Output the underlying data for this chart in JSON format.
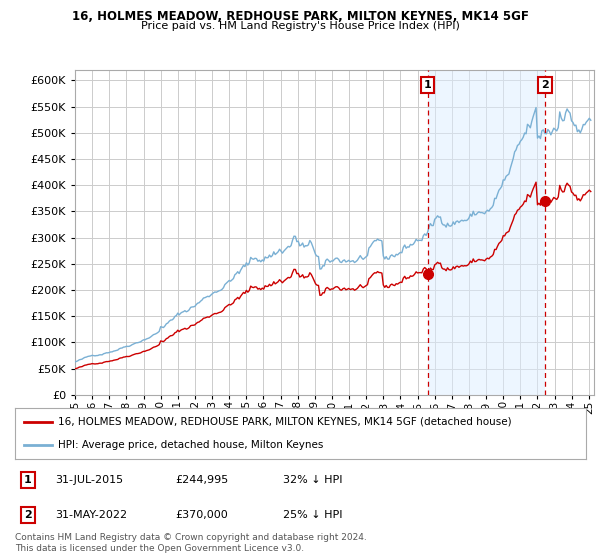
{
  "title1": "16, HOLMES MEADOW, REDHOUSE PARK, MILTON KEYNES, MK14 5GF",
  "title2": "Price paid vs. HM Land Registry's House Price Index (HPI)",
  "bg_color": "#ffffff",
  "plot_bg_color": "#ffffff",
  "grid_color": "#cccccc",
  "hpi_color": "#7ab0d4",
  "hpi_fill_color": "#ddeeff",
  "price_color": "#cc0000",
  "sale1_price": 244995,
  "sale1_date": "31-JUL-2015",
  "sale1_hpi_pct": "32% ↓ HPI",
  "sale2_price": 370000,
  "sale2_date": "31-MAY-2022",
  "sale2_hpi_pct": "25% ↓ HPI",
  "legend_line1": "16, HOLMES MEADOW, REDHOUSE PARK, MILTON KEYNES, MK14 5GF (detached house)",
  "legend_line2": "HPI: Average price, detached house, Milton Keynes",
  "footer": "Contains HM Land Registry data © Crown copyright and database right 2024.\nThis data is licensed under the Open Government Licence v3.0.",
  "ylim_max": 620000,
  "yticks": [
    0,
    50000,
    100000,
    150000,
    200000,
    250000,
    300000,
    350000,
    400000,
    450000,
    500000,
    550000,
    600000
  ],
  "sale1_x": 2015.58,
  "sale2_x": 2022.42,
  "vline_color": "#cc0000",
  "annotation_box_color": "#cc0000",
  "xstart": 1995.5,
  "xend": 2025.3
}
